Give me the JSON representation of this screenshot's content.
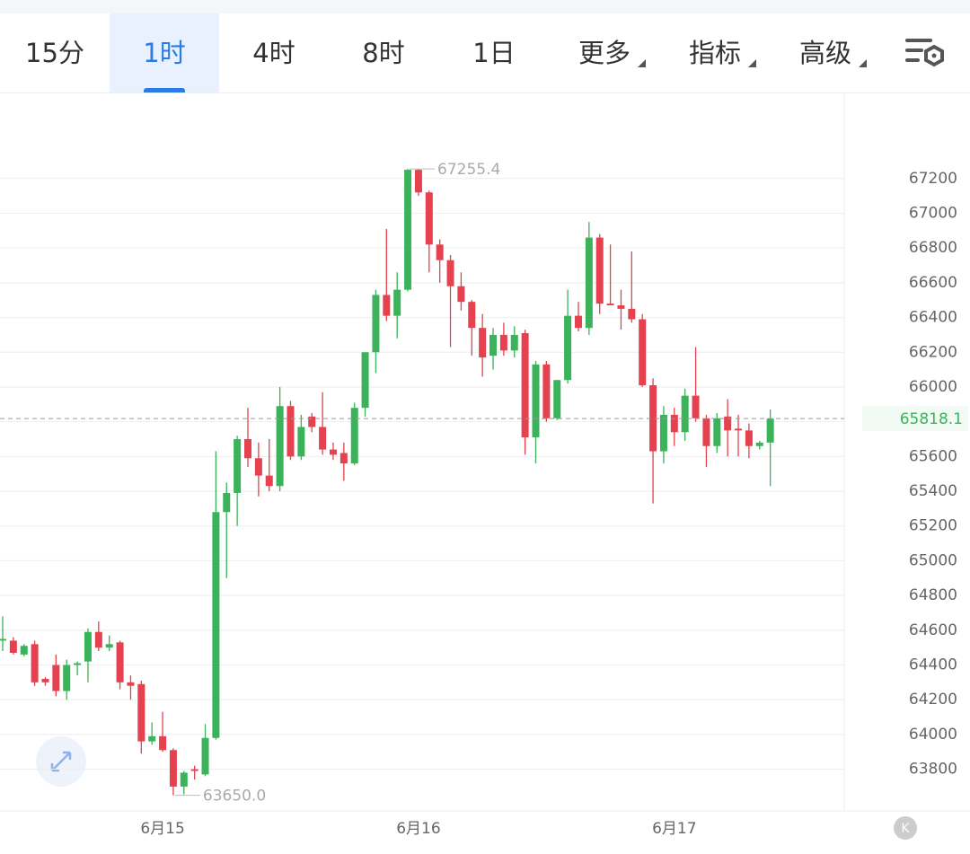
{
  "tabs": [
    "15分",
    "1时",
    "4时",
    "8时",
    "1日",
    "更多",
    "指标",
    "高级"
  ],
  "chart_data": {
    "type": "candlestick",
    "categories": [
      null,
      null,
      null,
      null,
      null,
      null,
      null,
      null,
      null,
      null,
      null,
      null,
      null,
      null,
      null,
      "6月15",
      null,
      null,
      null,
      null,
      null,
      null,
      null,
      null,
      null,
      null,
      null,
      null,
      null,
      null,
      null,
      null,
      null,
      null,
      null,
      null,
      null,
      null,
      null,
      "6月16",
      null,
      null,
      null,
      null,
      null,
      null,
      null,
      null,
      null,
      null,
      null,
      null,
      null,
      null,
      null,
      null,
      null,
      null,
      null,
      null,
      null,
      null,
      null,
      "6月17",
      null,
      null,
      null,
      null,
      null,
      null,
      null,
      null,
      null
    ],
    "open": [
      64540,
      64540,
      64460,
      64520,
      64320,
      64400,
      64250,
      64400,
      64420,
      64590,
      64500,
      64530,
      64300,
      64290,
      63960,
      63990,
      63910,
      63700,
      63800,
      63770,
      63980,
      65280,
      65390,
      65700,
      65590,
      65490,
      65430,
      65890,
      65600,
      65830,
      65770,
      65640,
      65620,
      65560,
      65880,
      66200,
      66530,
      66410,
      66560,
      67250,
      67120,
      66820,
      66730,
      66580,
      66490,
      66340,
      66180,
      66300,
      66210,
      66310,
      65710,
      66130,
      65820,
      66040,
      66410,
      66340,
      66860,
      66480,
      66470,
      66450,
      66390,
      66010,
      65630,
      65840,
      65740,
      65950,
      65820,
      65660,
      65830,
      65760,
      65750,
      65660,
      65680
    ],
    "high": [
      64680,
      64560,
      64520,
      64540,
      64330,
      64460,
      64430,
      64420,
      64610,
      64650,
      64570,
      64540,
      64340,
      64310,
      64070,
      64130,
      63920,
      63790,
      63820,
      64060,
      65630,
      65450,
      65720,
      65880,
      65680,
      65700,
      66000,
      65920,
      65840,
      65850,
      65970,
      65680,
      65680,
      65910,
      66200,
      66560,
      66910,
      66660,
      67255.4,
      67255,
      67130,
      66850,
      66760,
      66660,
      66500,
      66420,
      66340,
      66370,
      66350,
      66330,
      66150,
      66150,
      66040,
      66560,
      66490,
      66950,
      66880,
      66820,
      66560,
      66780,
      66420,
      66050,
      65890,
      65880,
      65990,
      66230,
      65840,
      65850,
      65930,
      65840,
      65790,
      65690,
      65870
    ],
    "low": [
      64480,
      64460,
      64450,
      64280,
      64280,
      64220,
      64200,
      64340,
      64300,
      64480,
      64480,
      64260,
      64200,
      63890,
      63940,
      63900,
      63650,
      63655,
      63740,
      63760,
      63970,
      64900,
      65200,
      65540,
      65370,
      65400,
      65400,
      65580,
      65580,
      65740,
      65610,
      65580,
      65460,
      65550,
      65830,
      66080,
      66380,
      66280,
      66550,
      67100,
      66660,
      66600,
      66230,
      66440,
      66180,
      66060,
      66100,
      66180,
      66170,
      65610,
      65560,
      65800,
      65810,
      66020,
      66320,
      66300,
      66420,
      66470,
      66330,
      66370,
      66000,
      65330,
      65560,
      65660,
      65690,
      65800,
      65540,
      65620,
      65600,
      65600,
      65590,
      65640,
      65430
    ],
    "close": [
      64550,
      64470,
      64510,
      64300,
      64300,
      64250,
      64400,
      64410,
      64590,
      64500,
      64520,
      64300,
      64280,
      63960,
      63990,
      63910,
      63700,
      63780,
      63790,
      63980,
      65280,
      65390,
      65700,
      65590,
      65490,
      65430,
      65890,
      65600,
      65770,
      65770,
      65640,
      65610,
      65560,
      65880,
      66200,
      66530,
      66410,
      66560,
      67250,
      67120,
      66820,
      66730,
      66580,
      66490,
      66340,
      66170,
      66300,
      66210,
      66300,
      65710,
      66130,
      65820,
      66040,
      66410,
      66340,
      66860,
      66480,
      66470,
      66450,
      66390,
      66010,
      65630,
      65840,
      65740,
      65950,
      65820,
      65660,
      65820,
      65750,
      65750,
      65660,
      65680,
      65818.1
    ],
    "up_color": "#3bb35a",
    "down_color": "#e5414e",
    "ylim": [
      63560,
      67690
    ],
    "yticks": [
      63800,
      64000,
      64200,
      64400,
      64600,
      64800,
      65000,
      65200,
      65400,
      65600,
      65800,
      66000,
      66200,
      66400,
      66600,
      66800,
      67000,
      67200
    ],
    "grid": true,
    "annotations": [
      {
        "label": "67255.4",
        "value": 67255.4
      },
      {
        "label": "63650.0",
        "value": 63650
      }
    ],
    "last_price": {
      "value": 65818.1,
      "label": "65818.1"
    },
    "badge": "K"
  }
}
